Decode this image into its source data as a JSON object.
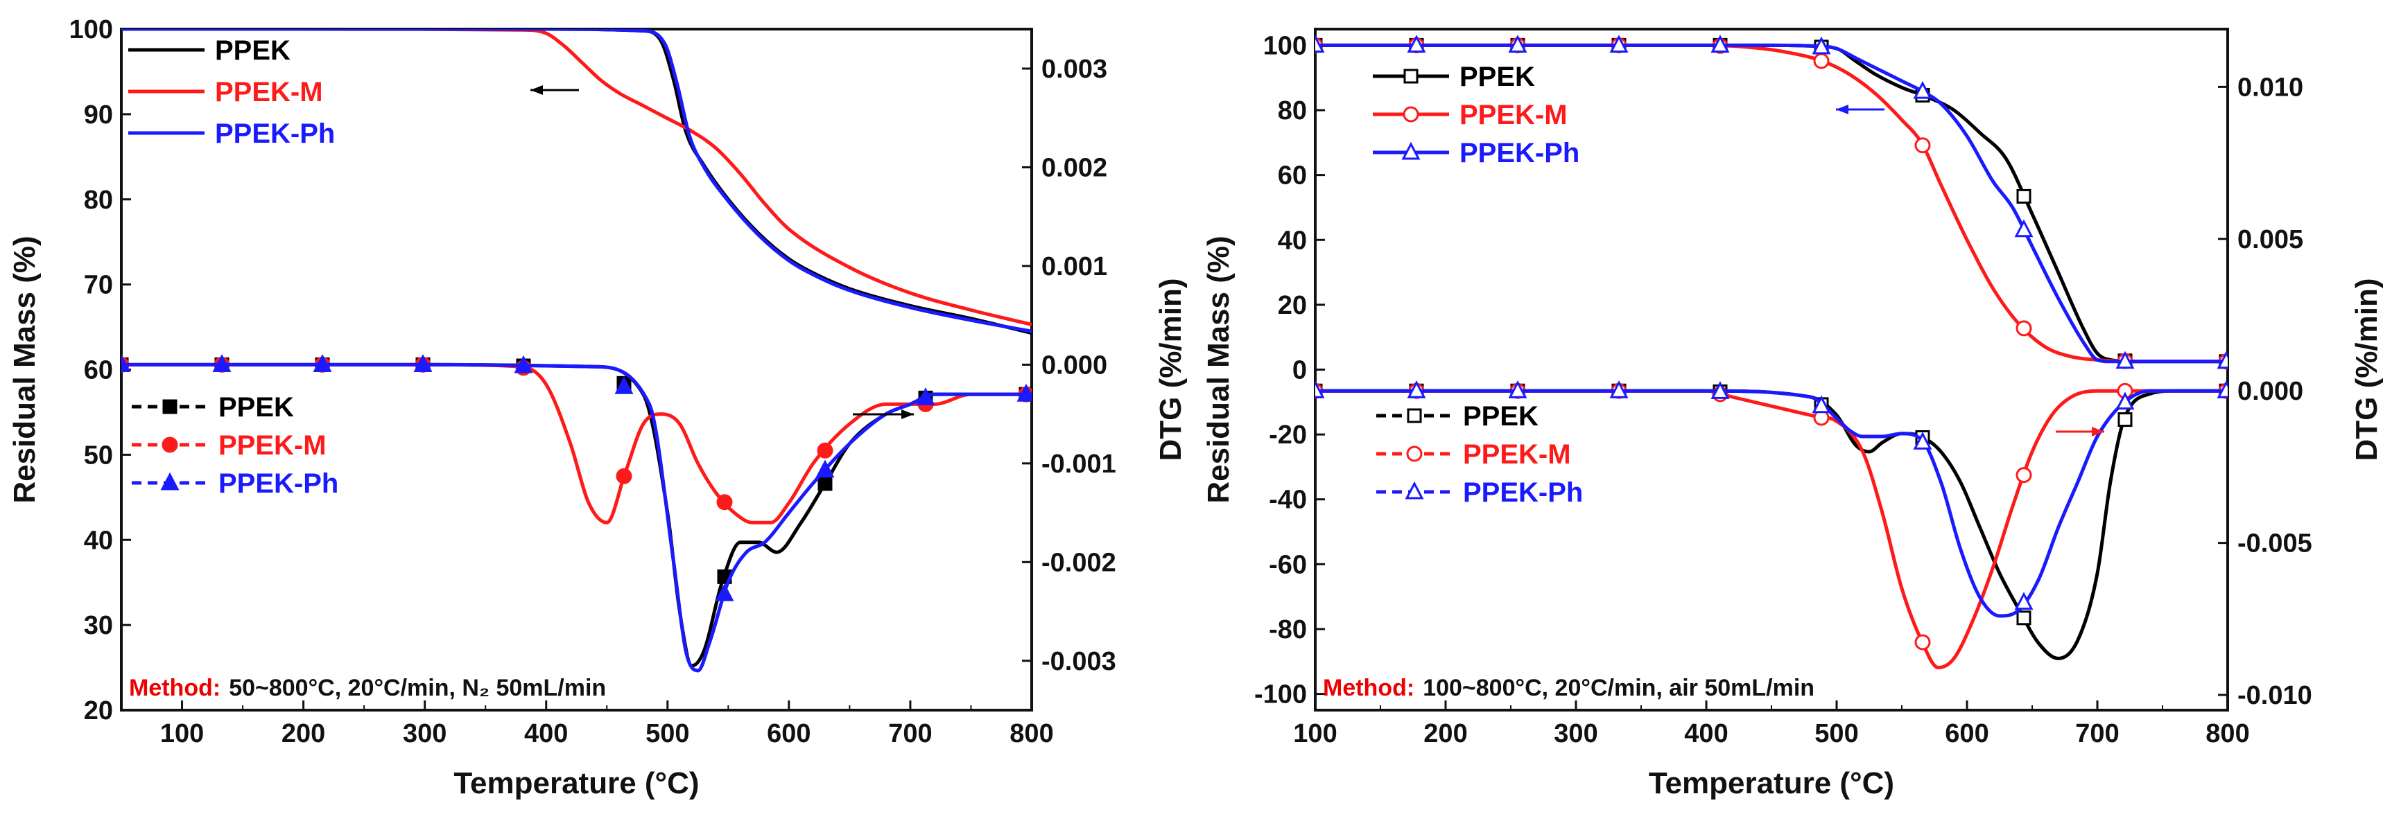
{
  "colors": {
    "PPEK": "#000000",
    "PPEK-M": "#ff1a1a",
    "PPEK-Ph": "#1a1aff"
  },
  "chart_data": [
    {
      "type": "line",
      "panel": "left",
      "xlabel": "Temperature (°C)",
      "ylabel": "Residual Mass (%)",
      "y2label": "DTG (%/min)",
      "xlim": [
        50,
        800
      ],
      "ylim": [
        20,
        100
      ],
      "y2lim": [
        -0.0035,
        0.0034
      ],
      "x_ticks": [
        "100",
        "200",
        "300",
        "400",
        "500",
        "600",
        "700",
        "800"
      ],
      "y_ticks": [
        "20",
        "30",
        "40",
        "50",
        "60",
        "70",
        "80",
        "90",
        "100"
      ],
      "y2_ticks": [
        "-0.003",
        "-0.002",
        "-0.001",
        "0.000",
        "0.001",
        "0.002",
        "0.003"
      ],
      "method_label": "Method:",
      "method_text": "50~800°C, 20°C/min, N₂ 50mL/min",
      "legend_tg": [
        "PPEK",
        "PPEK-M",
        "PPEK-Ph"
      ],
      "legend_dtg": [
        "PPEK",
        "PPEK-M",
        "PPEK-Ph"
      ],
      "tg_series": [
        {
          "name": "PPEK",
          "x": [
            50,
            200,
            400,
            480,
            495,
            505,
            515,
            530,
            550,
            575,
            600,
            625,
            650,
            700,
            750,
            800
          ],
          "y": [
            100,
            100,
            100,
            99.8,
            98.5,
            94,
            88,
            84,
            80,
            76,
            73,
            71,
            69.5,
            67.5,
            66,
            64.3
          ]
        },
        {
          "name": "PPEK-M",
          "x": [
            50,
            200,
            380,
            400,
            415,
            430,
            445,
            460,
            480,
            500,
            520,
            540,
            560,
            580,
            600,
            650,
            700,
            750,
            800
          ],
          "y": [
            100,
            100,
            99.9,
            99.5,
            98,
            96,
            94,
            92.5,
            91,
            89.5,
            88,
            86,
            83,
            79.5,
            76.5,
            72,
            69,
            67,
            65.3
          ]
        },
        {
          "name": "PPEK-Ph",
          "x": [
            50,
            200,
            400,
            480,
            498,
            508,
            518,
            530,
            550,
            575,
            600,
            625,
            650,
            700,
            750,
            800
          ],
          "y": [
            100,
            100,
            100,
            99.8,
            98.2,
            93.5,
            87.5,
            83.8,
            79.8,
            75.8,
            72.8,
            70.8,
            69.3,
            67.3,
            65.8,
            64.5
          ]
        }
      ],
      "dtg_series": [
        {
          "name": "PPEK",
          "x": [
            50,
            150,
            300,
            440,
            480,
            500,
            510,
            520,
            530,
            545,
            560,
            575,
            590,
            610,
            630,
            650,
            680,
            700,
            720,
            750,
            780,
            800
          ],
          "y": [
            0,
            0,
            0,
            -2e-05,
            -0.0003,
            -0.0015,
            -0.0025,
            -0.00305,
            -0.0029,
            -0.0022,
            -0.0018,
            -0.0018,
            -0.0019,
            -0.0016,
            -0.0012,
            -0.0008,
            -0.0005,
            -0.0004,
            -0.0003,
            -0.0003,
            -0.0003,
            -0.0003
          ]
        },
        {
          "name": "PPEK-M",
          "x": [
            50,
            150,
            300,
            380,
            400,
            420,
            435,
            450,
            465,
            480,
            495,
            510,
            525,
            540,
            555,
            570,
            585,
            600,
            620,
            650,
            680,
            700,
            720,
            750,
            780,
            800
          ],
          "y": [
            0,
            0,
            0,
            -2e-05,
            -0.0002,
            -0.0008,
            -0.0014,
            -0.0016,
            -0.0011,
            -0.0006,
            -0.0005,
            -0.0006,
            -0.001,
            -0.0013,
            -0.0015,
            -0.0016,
            -0.0016,
            -0.0014,
            -0.001,
            -0.0006,
            -0.0004,
            -0.0004,
            -0.0004,
            -0.0003,
            -0.0003,
            -0.0003
          ]
        },
        {
          "name": "PPEK-Ph",
          "x": [
            50,
            150,
            300,
            440,
            485,
            505,
            515,
            525,
            535,
            550,
            565,
            580,
            600,
            620,
            650,
            680,
            700,
            720,
            750,
            780,
            800
          ],
          "y": [
            0,
            0,
            0,
            -2e-05,
            -0.0004,
            -0.002,
            -0.0029,
            -0.0031,
            -0.0028,
            -0.0022,
            -0.0019,
            -0.0018,
            -0.0015,
            -0.0012,
            -0.0008,
            -0.0005,
            -0.0004,
            -0.0003,
            -0.0003,
            -0.0003,
            -0.0003
          ]
        }
      ]
    },
    {
      "type": "line",
      "panel": "right",
      "xlabel": "Temperature (°C)",
      "ylabel": "Residual Mass (%)",
      "y2label": "DTG (%/min)",
      "xlim": [
        100,
        800
      ],
      "ylim": [
        -105,
        105
      ],
      "y2lim": [
        -0.0105,
        0.0119
      ],
      "x_ticks": [
        "100",
        "200",
        "300",
        "400",
        "500",
        "600",
        "700",
        "800"
      ],
      "y_ticks": [
        "-100",
        "-80",
        "-60",
        "-40",
        "-20",
        "0",
        "20",
        "40",
        "60",
        "80",
        "100"
      ],
      "y2_ticks": [
        "-0.010",
        "-0.005",
        "0.000",
        "0.005",
        "0.010"
      ],
      "method_label": "Method:",
      "method_text": "100~800°C, 20°C/min, air 50mL/min",
      "legend_tg": [
        "PPEK",
        "PPEK-M",
        "PPEK-Ph"
      ],
      "legend_dtg": [
        "PPEK",
        "PPEK-M",
        "PPEK-Ph"
      ],
      "tg_series": [
        {
          "name": "PPEK",
          "x": [
            100,
            300,
            450,
            480,
            500,
            515,
            530,
            550,
            570,
            590,
            610,
            630,
            650,
            670,
            690,
            700,
            710,
            730,
            760,
            800
          ],
          "y": [
            100,
            100,
            100,
            99.8,
            99,
            95,
            91,
            87,
            84,
            80,
            73,
            65,
            48,
            30,
            12,
            5,
            3,
            2.5,
            2.5,
            2.5
          ]
        },
        {
          "name": "PPEK-M",
          "x": [
            100,
            300,
            400,
            430,
            460,
            490,
            510,
            530,
            550,
            565,
            580,
            600,
            620,
            640,
            660,
            680,
            700,
            730,
            760,
            800
          ],
          "y": [
            100,
            100,
            100,
            99.5,
            98,
            95,
            91,
            85,
            77,
            70,
            57,
            40,
            25,
            14,
            7,
            4,
            3,
            2.5,
            2.5,
            2.5
          ]
        },
        {
          "name": "PPEK-Ph",
          "x": [
            100,
            300,
            450,
            480,
            500,
            515,
            530,
            550,
            565,
            580,
            600,
            620,
            635,
            650,
            670,
            690,
            700,
            710,
            730,
            760,
            800
          ],
          "y": [
            100,
            100,
            100,
            99.8,
            99,
            96,
            93,
            89,
            86,
            82,
            72,
            58,
            50,
            38,
            22,
            8,
            3,
            2.5,
            2.5,
            2.5,
            2.5
          ]
        }
      ],
      "dtg_series": [
        {
          "name": "PPEK",
          "x": [
            100,
            300,
            400,
            480,
            500,
            515,
            525,
            535,
            550,
            565,
            580,
            595,
            610,
            625,
            640,
            655,
            670,
            685,
            700,
            710,
            720,
            740,
            760,
            800
          ],
          "y": [
            0,
            0,
            0,
            -0.0002,
            -0.0008,
            -0.0018,
            -0.002,
            -0.0017,
            -0.0014,
            -0.0015,
            -0.002,
            -0.003,
            -0.0045,
            -0.006,
            -0.0072,
            -0.0083,
            -0.0088,
            -0.0082,
            -0.006,
            -0.003,
            -0.001,
            -0.0001,
            0,
            0
          ]
        },
        {
          "name": "PPEK-M",
          "x": [
            100,
            300,
            400,
            420,
            450,
            480,
            500,
            520,
            535,
            550,
            565,
            578,
            590,
            605,
            620,
            635,
            650,
            665,
            680,
            700,
            720,
            760,
            800
          ],
          "y": [
            0,
            0,
            0,
            -0.0002,
            -0.0005,
            -0.0008,
            -0.001,
            -0.002,
            -0.004,
            -0.0065,
            -0.0082,
            -0.0091,
            -0.0088,
            -0.0075,
            -0.0058,
            -0.0038,
            -0.002,
            -0.0008,
            -0.0002,
            0,
            0,
            0,
            0
          ]
        },
        {
          "name": "PPEK-Ph",
          "x": [
            100,
            300,
            400,
            480,
            500,
            510,
            520,
            535,
            550,
            565,
            580,
            595,
            610,
            625,
            640,
            655,
            670,
            685,
            700,
            720,
            740,
            760,
            800
          ],
          "y": [
            0,
            0,
            0,
            -0.0002,
            -0.0009,
            -0.0013,
            -0.0015,
            -0.0015,
            -0.0014,
            -0.0016,
            -0.003,
            -0.0052,
            -0.0068,
            -0.0074,
            -0.0072,
            -0.0062,
            -0.0045,
            -0.003,
            -0.0015,
            -0.0004,
            0,
            0,
            0
          ]
        }
      ]
    }
  ]
}
